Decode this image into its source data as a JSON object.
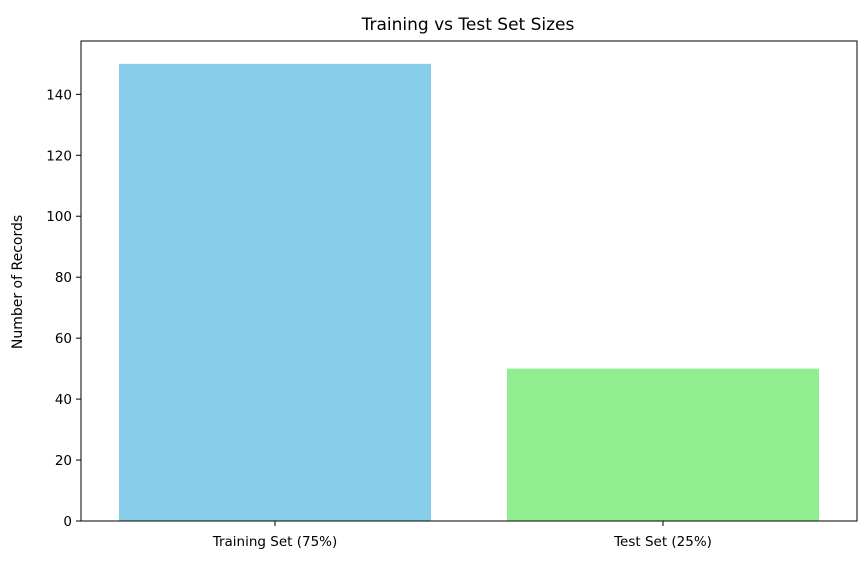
{
  "chart_data": {
    "type": "bar",
    "title": "Training vs Test Set Sizes",
    "xlabel": "",
    "ylabel": "Number of Records",
    "categories": [
      "Training Set (75%)",
      "Test Set (25%)"
    ],
    "values": [
      150,
      50
    ],
    "colors": [
      "#87ceeb",
      "#90ee90"
    ],
    "ylim": [
      0,
      157.5
    ],
    "yticks": [
      0,
      20,
      40,
      60,
      80,
      100,
      120,
      140
    ],
    "grid": false,
    "legend": "none"
  }
}
